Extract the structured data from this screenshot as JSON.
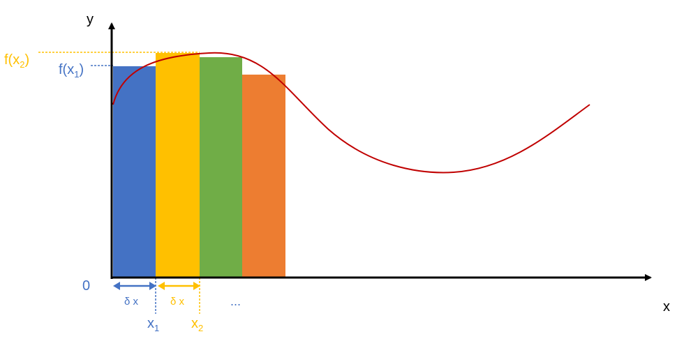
{
  "axes": {
    "y_label": "y",
    "x_label": "x",
    "origin_label": "0"
  },
  "labels": {
    "f_x1": {
      "base": "f(x",
      "sub": "1",
      "close": ")"
    },
    "f_x2": {
      "base": "f(x",
      "sub": "2",
      "close": ")"
    },
    "x1": {
      "base": "x",
      "sub": "1"
    },
    "x2": {
      "base": "x",
      "sub": "2"
    },
    "delta_1": "δ x",
    "delta_2": "δ x",
    "ellipsis": "..."
  },
  "bars": [
    {
      "name": "bar-1",
      "color": "#4472c4"
    },
    {
      "name": "bar-2",
      "color": "#ffc000"
    },
    {
      "name": "bar-3",
      "color": "#70ad47"
    },
    {
      "name": "bar-4",
      "color": "#ed7d31"
    }
  ],
  "colors": {
    "axis": "#000000",
    "curve": "#c00000",
    "blue": "#4472c4",
    "gold": "#ffc000"
  }
}
